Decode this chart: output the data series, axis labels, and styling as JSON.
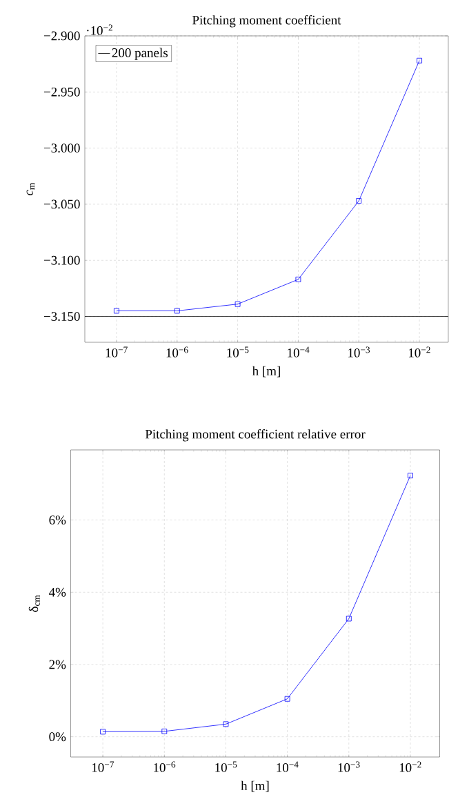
{
  "chart_data": [
    {
      "type": "line",
      "title": "Pitching moment coefficient",
      "xlabel": "h [m]",
      "ylabel": "*c*$_{m}$",
      "annotations": [
        "·10$^{−2}$"
      ],
      "x": [
        1e-07,
        1e-06,
        1e-05,
        0.0001,
        0.001,
        0.01
      ],
      "series": [
        {
          "color": "#0000ff",
          "values": [
            -3.145,
            -3.145,
            -3.139,
            -3.117,
            -3.047,
            -2.922
          ]
        }
      ],
      "xlim": [
        3e-08,
        0.03
      ],
      "ylim": [
        -3.173,
        -2.9
      ],
      "xticks": [
        {
          "value": 1e-07,
          "label": "10$^{−7}$"
        },
        {
          "value": 1e-06,
          "label": "10$^{−6}$"
        },
        {
          "value": 1e-05,
          "label": "10$^{−5}$"
        },
        {
          "value": 0.0001,
          "label": "10$^{−4}$"
        },
        {
          "value": 0.001,
          "label": "10$^{−3}$"
        },
        {
          "value": 0.01,
          "label": "10$^{−2}$"
        }
      ],
      "yticks": [
        {
          "value": -3.15,
          "label": "−3.150"
        },
        {
          "value": -3.1,
          "label": "−3.100"
        },
        {
          "value": -3.05,
          "label": "−3.050"
        },
        {
          "value": -3.0,
          "label": "−3.000"
        },
        {
          "value": -2.95,
          "label": "−2.950"
        },
        {
          "value": -2.9,
          "label": "−2.900"
        }
      ],
      "log": "x",
      "grid": true,
      "marker": "square",
      "legend": "top left",
      "ref_lines": [
        {
          "axis": "y",
          "value": -3.15,
          "label": "200 panels",
          "color": "#000000"
        }
      ]
    },
    {
      "type": "line",
      "title": "Pitching moment coefficient relative error",
      "xlabel": "h [m]",
      "ylabel": "δ$_{cm}$",
      "x": [
        1e-07,
        1e-06,
        1e-05,
        0.0001,
        0.001,
        0.01
      ],
      "series": [
        {
          "color": "#0000ff",
          "values": [
            0.14,
            0.15,
            0.35,
            1.05,
            3.27,
            7.23
          ]
        }
      ],
      "xlim": [
        3e-08,
        0.03
      ],
      "ylim": [
        -0.56,
        7.94
      ],
      "xticks": [
        {
          "value": 1e-07,
          "label": "10$^{−7}$"
        },
        {
          "value": 1e-06,
          "label": "10$^{−6}$"
        },
        {
          "value": 1e-05,
          "label": "10$^{−5}$"
        },
        {
          "value": 0.0001,
          "label": "10$^{−4}$"
        },
        {
          "value": 0.001,
          "label": "10$^{−3}$"
        },
        {
          "value": 0.01,
          "label": "10$^{−2}$"
        }
      ],
      "yticks": [
        {
          "value": 0,
          "label": "0%"
        },
        {
          "value": 2,
          "label": "2%"
        },
        {
          "value": 4,
          "label": "4%"
        },
        {
          "value": 6,
          "label": "6%"
        }
      ],
      "log": "x",
      "grid": true,
      "marker": "square"
    }
  ]
}
